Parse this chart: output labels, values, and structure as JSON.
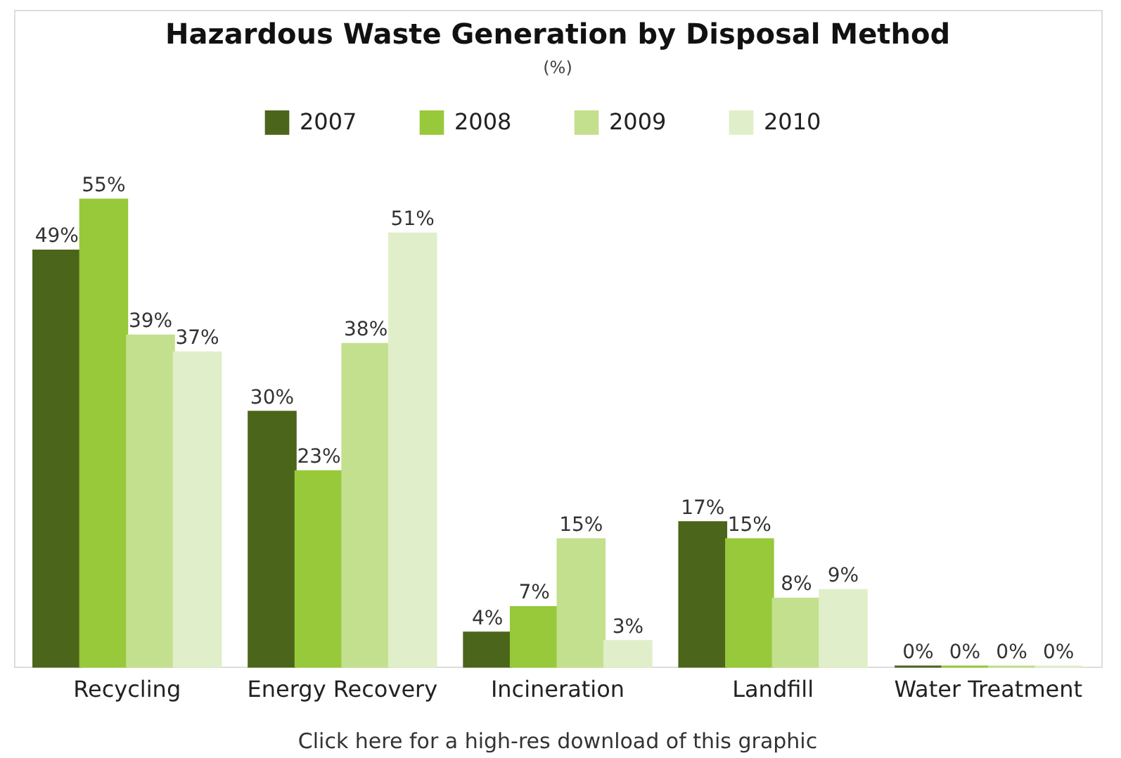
{
  "chart_data": {
    "type": "bar",
    "title": "Hazardous Waste Generation by Disposal Method",
    "subtitle": "(%)",
    "categories": [
      "Recycling",
      "Energy Recovery",
      "Incineration",
      "Landfill",
      "Water Treatment"
    ],
    "series": [
      {
        "name": "2007",
        "color": "#4b651a",
        "values": [
          49,
          30,
          4,
          17,
          0
        ],
        "value_labels": [
          "49%",
          "30%",
          "4%",
          "17%",
          "0%"
        ]
      },
      {
        "name": "2008",
        "color": "#97c93a",
        "values": [
          55,
          23,
          7,
          15,
          0
        ],
        "value_labels": [
          "55%",
          "23%",
          "7%",
          "15%",
          "0%"
        ]
      },
      {
        "name": "2009",
        "color": "#c3e08f",
        "values": [
          39,
          38,
          15,
          8,
          0
        ],
        "value_labels": [
          "39%",
          "38%",
          "15%",
          "8%",
          "0%"
        ]
      },
      {
        "name": "2010",
        "color": "#e0efc9",
        "values": [
          37,
          51,
          3,
          9,
          0
        ],
        "value_labels": [
          "37%",
          "51%",
          "3%",
          "9%",
          "0%"
        ]
      }
    ],
    "legend": "top",
    "annotations": [
      "Click here for a high-res download of this graphic"
    ]
  }
}
